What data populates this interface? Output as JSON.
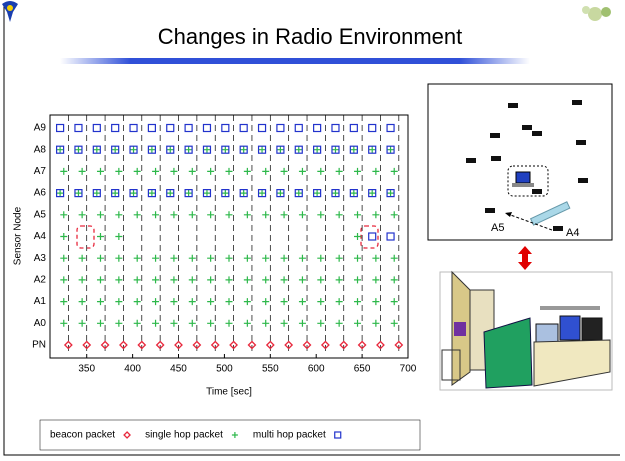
{
  "title": "Changes in Radio Environment",
  "chart_data": {
    "type": "scatter",
    "x_label": "Time [sec]",
    "y_label": "Sensor Node",
    "categories": [
      "PN",
      "A0",
      "A1",
      "A2",
      "A3",
      "A4",
      "A5",
      "A6",
      "A7",
      "A8",
      "A9"
    ],
    "xlim": [
      310,
      700
    ],
    "xticks": [
      350,
      400,
      450,
      500,
      550,
      600,
      650,
      700
    ],
    "series": [
      {
        "name": "beacon packet",
        "color": "#e8283c",
        "marker": "diamond",
        "rows": [
          {
            "node": "PN",
            "x": [
              330,
              350,
              370,
              390,
              410,
              430,
              450,
              470,
              490,
              510,
              530,
              550,
              570,
              590,
              610,
              630,
              650,
              670,
              690
            ]
          }
        ]
      },
      {
        "name": "single hop packet",
        "color": "#2db84a",
        "marker": "plus",
        "rows": [
          {
            "node": "A0",
            "x": [
              325,
              345,
              365,
              385,
              405,
              425,
              445,
              465,
              485,
              505,
              525,
              545,
              565,
              585,
              605,
              625,
              645,
              665,
              685
            ]
          },
          {
            "node": "A1",
            "x": [
              325,
              345,
              365,
              385,
              405,
              425,
              445,
              465,
              485,
              505,
              525,
              545,
              565,
              585,
              605,
              625,
              645,
              665,
              685
            ]
          },
          {
            "node": "A2",
            "x": [
              325,
              345,
              365,
              385,
              405,
              425,
              445,
              465,
              485,
              505,
              525,
              545,
              565,
              585,
              605,
              625,
              645,
              665,
              685
            ]
          },
          {
            "node": "A3",
            "x": [
              325,
              345,
              365,
              385,
              405,
              425,
              445,
              465,
              485,
              505,
              525,
              545,
              565,
              585,
              605,
              625,
              645,
              665,
              685
            ]
          },
          {
            "node": "A4",
            "x": [
              325,
              365,
              385,
              645
            ]
          },
          {
            "node": "A5",
            "x": [
              325,
              345,
              365,
              385,
              405,
              425,
              445,
              465,
              485,
              505,
              525,
              545,
              565,
              585,
              605,
              625,
              645,
              665,
              685
            ]
          },
          {
            "node": "A6",
            "x": [
              321,
              341,
              361,
              381,
              401,
              421,
              441,
              461,
              481,
              501,
              521,
              541,
              561,
              581,
              601,
              621,
              641,
              661,
              681
            ]
          },
          {
            "node": "A7",
            "x": [
              325,
              345,
              365,
              385,
              405,
              425,
              445,
              465,
              485,
              505,
              525,
              545,
              565,
              585,
              605,
              625,
              645,
              665,
              685
            ]
          },
          {
            "node": "A8",
            "x": [
              321,
              341,
              361,
              381,
              401,
              421,
              441,
              461,
              481,
              501,
              521,
              541,
              561,
              581,
              601,
              621,
              641,
              661,
              681
            ]
          }
        ]
      },
      {
        "name": "multi hop packet",
        "color": "#2233cc",
        "marker": "square",
        "rows": [
          {
            "node": "A4",
            "x": [
              661,
              681
            ]
          },
          {
            "node": "A6",
            "x": [
              321,
              341,
              361,
              381,
              401,
              421,
              441,
              461,
              481,
              501,
              521,
              541,
              561,
              581,
              601,
              621,
              641,
              661,
              681
            ]
          },
          {
            "node": "A8",
            "x": [
              321,
              341,
              361,
              381,
              401,
              421,
              441,
              461,
              481,
              501,
              521,
              541,
              561,
              581,
              601,
              621,
              641,
              661,
              681
            ]
          },
          {
            "node": "A9",
            "x": [
              321,
              341,
              361,
              381,
              401,
              421,
              441,
              461,
              481,
              501,
              521,
              541,
              561,
              581,
              601,
              621,
              641,
              661,
              681
            ]
          }
        ]
      }
    ]
  },
  "diagram": {
    "labels": [
      "A5",
      "A4"
    ]
  }
}
